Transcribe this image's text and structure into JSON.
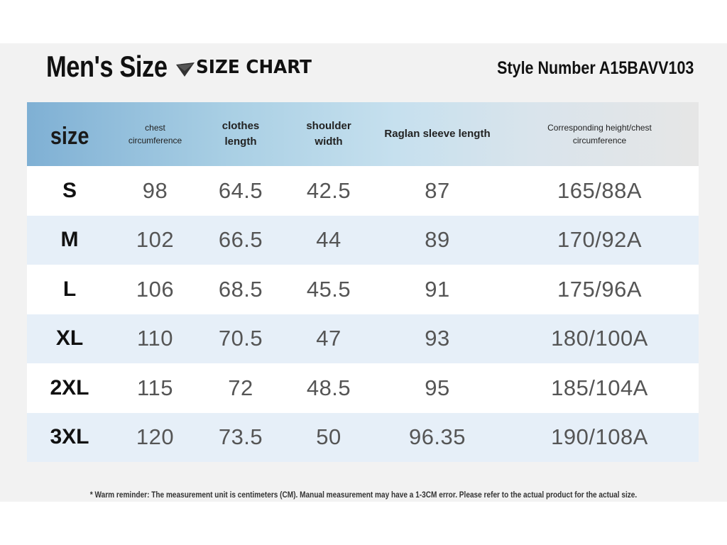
{
  "title": "Men's Size",
  "subtitle": "SIZE CHART",
  "style_number": "Style Number A15BAVV103",
  "table": {
    "headers": [
      "size",
      "chest circumference",
      "clothes length",
      "shoulder width",
      "Raglan sleeve length",
      "Corresponding height/chest circumference"
    ],
    "header_lines": {
      "chest": [
        "chest",
        "circumference"
      ],
      "length": [
        "clothes",
        "length"
      ],
      "shoulder": [
        "shoulder",
        "width"
      ],
      "raglan": [
        "Raglan sleeve length"
      ],
      "height": [
        "Corresponding height/chest",
        "circumference"
      ]
    },
    "rows": [
      [
        "S",
        "98",
        "64.5",
        "42.5",
        "87",
        "165/88A"
      ],
      [
        "M",
        "102",
        "66.5",
        "44",
        "89",
        "170/92A"
      ],
      [
        "L",
        "106",
        "68.5",
        "45.5",
        "91",
        "175/96A"
      ],
      [
        "XL",
        "110",
        "70.5",
        "47",
        "93",
        "180/100A"
      ],
      [
        "2XL",
        "115",
        "72",
        "48.5",
        "95",
        "185/104A"
      ],
      [
        "3XL",
        "120",
        "73.5",
        "50",
        "96.35",
        "190/108A"
      ]
    ]
  },
  "footnote": "* Warm reminder: The measurement unit is centimeters (CM). Manual measurement may have a 1-3CM error. Please refer to the actual product for the actual size.",
  "colors": {
    "row_alt": "#e6eff8",
    "header_start": "#7fb0d4",
    "header_end": "#e6e6e6"
  }
}
